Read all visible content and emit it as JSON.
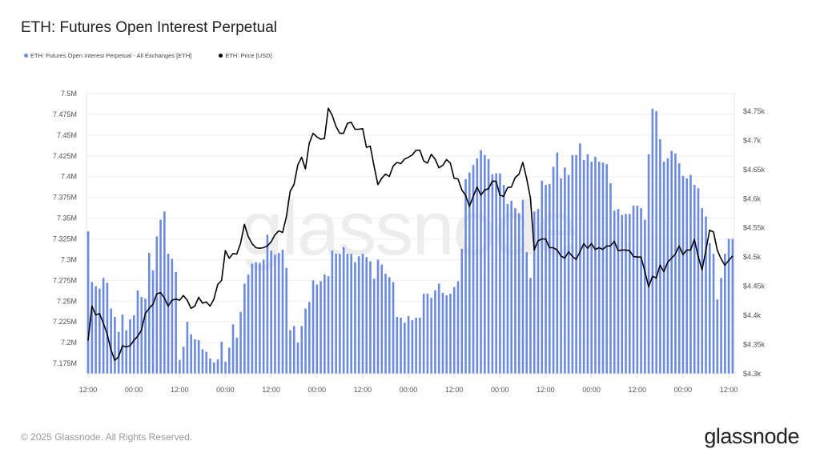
{
  "title": "ETH: Futures Open Interest Perpetual",
  "legend": [
    {
      "label": "ETH: Futures Open Interest Perpetual - All Exchanges [ETH]",
      "color": "#6c8be0"
    },
    {
      "label": "ETH: Price [USD]",
      "color": "#000000"
    }
  ],
  "watermark": "glassnode",
  "footer": "© 2025 Glassnode. All Rights Reserved.",
  "logo": "glassnode",
  "chart_data": {
    "type": "bar+line",
    "title": "ETH: Futures Open Interest Perpetual",
    "x_tick_labels": [
      "12:00",
      "00:00",
      "12:00",
      "00:00",
      "12:00",
      "00:00",
      "12:00",
      "00:00",
      "12:00",
      "00:00",
      "12:00",
      "00:00",
      "12:00",
      "00:00",
      "12:00"
    ],
    "x_interval": "hourly",
    "left_axis": {
      "unit": "M ETH",
      "ylim": [
        7.1625,
        7.5
      ],
      "ticks": [
        7.175,
        7.2,
        7.225,
        7.25,
        7.275,
        7.3,
        7.325,
        7.35,
        7.375,
        7.4,
        7.425,
        7.45,
        7.475,
        7.5
      ],
      "tick_labels": [
        "7.175M",
        "7.2M",
        "7.225M",
        "7.25M",
        "7.275M",
        "7.3M",
        "7.325M",
        "7.35M",
        "7.375M",
        "7.4M",
        "7.425M",
        "7.45M",
        "7.475M",
        "7.5M"
      ]
    },
    "right_axis": {
      "unit": "USD",
      "ylim": [
        4300,
        4780
      ],
      "ticks": [
        4300,
        4350,
        4400,
        4450,
        4500,
        4550,
        4600,
        4650,
        4700,
        4750
      ],
      "tick_labels": [
        "$4.3k",
        "$4.35k",
        "$4.4k",
        "$4.45k",
        "$4.5k",
        "$4.55k",
        "$4.6k",
        "$4.65k",
        "$4.7k",
        "$4.75k"
      ]
    },
    "grid": true,
    "legend_position": "top-left",
    "series": [
      {
        "name": "ETH: Futures Open Interest Perpetual - All Exchanges [ETH]",
        "type": "bar",
        "axis": "left",
        "color": "#6c8be0",
        "values": [
          7.334,
          7.273,
          7.268,
          7.265,
          7.278,
          7.272,
          7.241,
          7.231,
          7.213,
          7.234,
          7.215,
          7.228,
          7.233,
          7.263,
          7.255,
          7.253,
          7.308,
          7.287,
          7.328,
          7.348,
          7.358,
          7.307,
          7.301,
          7.285,
          7.179,
          7.195,
          7.225,
          7.21,
          7.204,
          7.203,
          7.192,
          7.189,
          7.181,
          7.176,
          7.18,
          7.201,
          7.177,
          7.194,
          7.222,
          7.206,
          7.237,
          7.271,
          7.282,
          7.295,
          7.297,
          7.296,
          7.3,
          7.33,
          7.311,
          7.306,
          7.308,
          7.312,
          7.29,
          7.215,
          7.22,
          7.2,
          7.22,
          7.241,
          7.249,
          7.275,
          7.27,
          7.274,
          7.282,
          7.28,
          7.311,
          7.307,
          7.307,
          7.315,
          7.307,
          7.307,
          7.297,
          7.304,
          7.307,
          7.303,
          7.298,
          7.277,
          7.3,
          7.294,
          7.283,
          7.279,
          7.273,
          7.231,
          7.23,
          7.224,
          7.232,
          7.227,
          7.23,
          7.23,
          7.259,
          7.259,
          7.254,
          7.263,
          7.271,
          7.26,
          7.257,
          7.259,
          7.267,
          7.274,
          7.313,
          7.397,
          7.405,
          7.414,
          7.422,
          7.432,
          7.426,
          7.421,
          7.403,
          7.404,
          7.404,
          7.39,
          7.367,
          7.371,
          7.362,
          7.356,
          7.372,
          7.309,
          7.278,
          7.358,
          7.361,
          7.395,
          7.39,
          7.391,
          7.412,
          7.429,
          7.398,
          7.411,
          7.402,
          7.426,
          7.426,
          7.44,
          7.42,
          7.427,
          7.418,
          7.424,
          7.418,
          7.417,
          7.415,
          7.392,
          7.359,
          7.361,
          7.354,
          7.355,
          7.355,
          7.365,
          7.365,
          7.362,
          7.348,
          7.427,
          7.482,
          7.479,
          7.445,
          7.418,
          7.422,
          7.431,
          7.428,
          7.416,
          7.401,
          7.398,
          7.402,
          7.39,
          7.386,
          7.362,
          7.352,
          7.32,
          7.307,
          7.252,
          7.278,
          7.307,
          7.325,
          7.325
        ]
      },
      {
        "name": "ETH: Price [USD]",
        "type": "line",
        "axis": "right",
        "color": "#000000",
        "values": [
          4357,
          4416,
          4401,
          4403,
          4387,
          4368,
          4341,
          4323,
          4329,
          4348,
          4346,
          4348,
          4357,
          4364,
          4375,
          4403,
          4412,
          4419,
          4437,
          4439,
          4430,
          4416,
          4426,
          4428,
          4426,
          4434,
          4426,
          4412,
          4416,
          4431,
          4421,
          4423,
          4416,
          4428,
          4453,
          4460,
          4511,
          4498,
          4506,
          4505,
          4524,
          4556,
          4535,
          4523,
          4516,
          4515,
          4516,
          4519,
          4526,
          4538,
          4545,
          4542,
          4569,
          4613,
          4624,
          4658,
          4671,
          4651,
          4695,
          4712,
          4706,
          4702,
          4703,
          4755,
          4743,
          4724,
          4712,
          4712,
          4729,
          4731,
          4719,
          4719,
          4720,
          4688,
          4690,
          4656,
          4624,
          4635,
          4642,
          4638,
          4656,
          4662,
          4660,
          4668,
          4671,
          4675,
          4683,
          4683,
          4665,
          4661,
          4676,
          4668,
          4653,
          4657,
          4667,
          4661,
          4635,
          4634,
          4615,
          4606,
          4587,
          4604,
          4620,
          4606,
          4615,
          4617,
          4630,
          4630,
          4606,
          4604,
          4619,
          4620,
          4636,
          4642,
          4662,
          4635,
          4601,
          4512,
          4528,
          4531,
          4531,
          4516,
          4516,
          4512,
          4502,
          4498,
          4509,
          4501,
          4496,
          4509,
          4523,
          4515,
          4523,
          4513,
          4516,
          4513,
          4519,
          4519,
          4527,
          4511,
          4512,
          4512,
          4511,
          4501,
          4500,
          4500,
          4476,
          4449,
          4467,
          4464,
          4486,
          4475,
          4491,
          4498,
          4505,
          4519,
          4504,
          4512,
          4512,
          4530,
          4501,
          4478,
          4511,
          4546,
          4543,
          4512,
          4497,
          4486,
          4494,
          4502
        ]
      }
    ]
  }
}
